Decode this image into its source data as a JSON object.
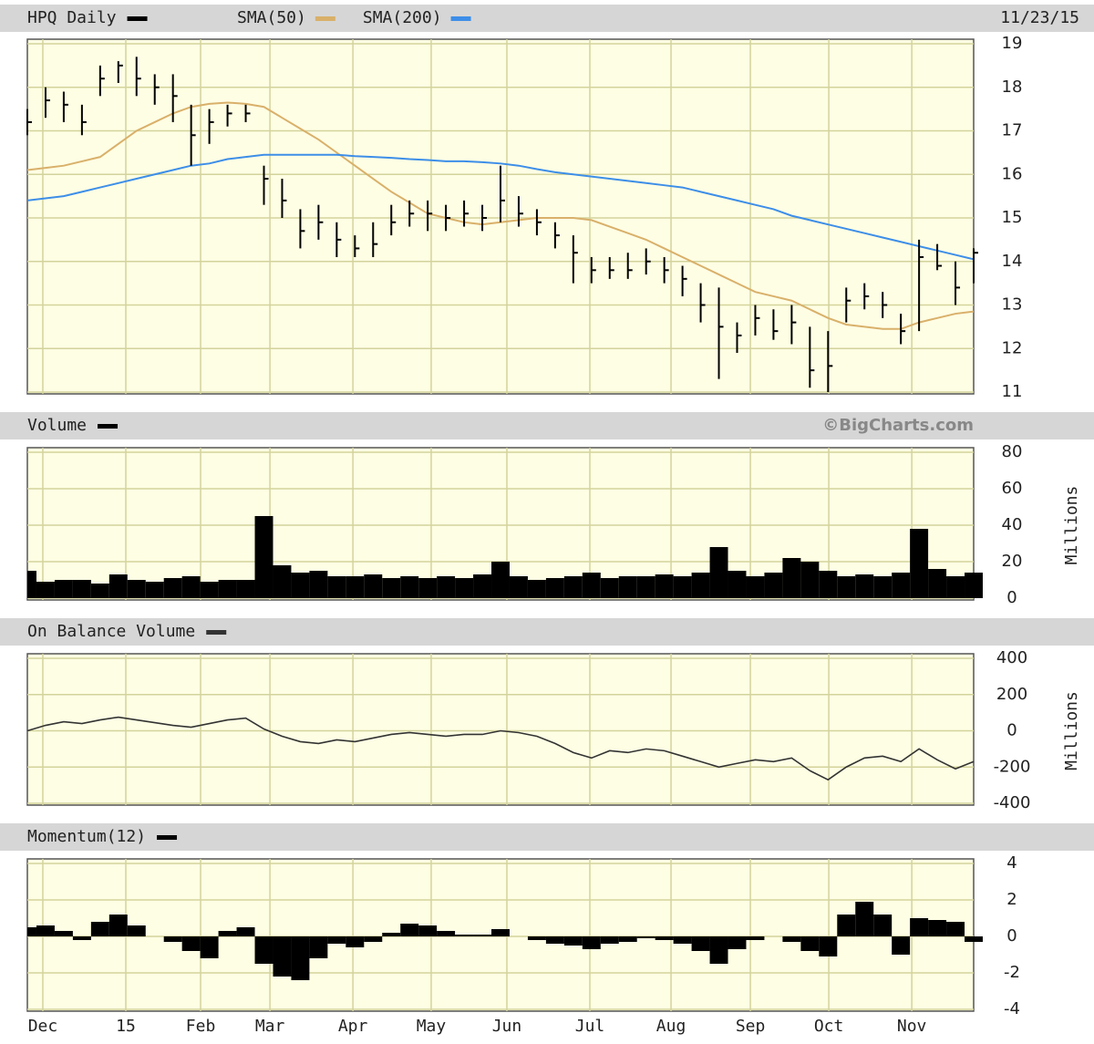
{
  "chart_data": [
    {
      "type": "ohlc",
      "title": "HPQ Daily",
      "date": "11/23/15",
      "color": "#000000",
      "high": [
        17.5,
        18.0,
        17.9,
        17.6,
        18.5,
        18.6,
        18.7,
        18.3,
        18.3,
        17.6,
        17.5,
        17.6,
        17.6,
        16.2,
        15.9,
        15.2,
        15.3,
        14.9,
        14.6,
        14.9,
        15.3,
        15.4,
        15.4,
        15.3,
        15.4,
        15.3,
        16.2,
        15.5,
        15.2,
        14.9,
        14.6,
        14.1,
        14.1,
        14.2,
        14.3,
        14.1,
        13.9,
        13.5,
        13.4,
        12.6,
        13.0,
        12.9,
        13.0,
        12.5,
        12.4,
        13.4,
        13.5,
        13.3,
        12.8,
        14.5,
        14.4,
        14.0,
        14.3
      ],
      "low": [
        16.9,
        17.3,
        17.2,
        16.9,
        17.8,
        18.1,
        17.8,
        17.6,
        17.2,
        16.2,
        16.7,
        17.1,
        17.2,
        15.3,
        15.0,
        14.3,
        14.5,
        14.1,
        14.1,
        14.1,
        14.6,
        14.8,
        14.7,
        14.7,
        14.8,
        14.7,
        14.9,
        14.8,
        14.6,
        14.3,
        13.5,
        13.5,
        13.6,
        13.6,
        13.7,
        13.5,
        13.2,
        12.6,
        11.3,
        11.9,
        12.3,
        12.2,
        12.1,
        11.1,
        11.0,
        12.6,
        12.9,
        12.7,
        12.1,
        12.4,
        13.8,
        13.0,
        13.5
      ],
      "close": [
        17.2,
        17.7,
        17.6,
        17.2,
        18.2,
        18.5,
        18.2,
        18.0,
        17.8,
        16.9,
        17.2,
        17.4,
        17.4,
        15.9,
        15.4,
        14.7,
        14.9,
        14.5,
        14.3,
        14.4,
        14.9,
        15.1,
        15.1,
        15.0,
        15.1,
        15.0,
        15.4,
        15.1,
        14.9,
        14.6,
        14.2,
        13.8,
        13.8,
        13.8,
        14.0,
        13.8,
        13.6,
        13.0,
        12.5,
        12.3,
        12.7,
        12.4,
        12.6,
        11.5,
        11.6,
        13.1,
        13.2,
        13.0,
        12.4,
        14.1,
        13.9,
        13.4,
        14.2
      ],
      "series": [
        {
          "name": "SMA(50)",
          "color": "#d9b06a",
          "values": [
            16.1,
            16.15,
            16.2,
            16.3,
            16.4,
            16.7,
            17.0,
            17.2,
            17.4,
            17.55,
            17.62,
            17.65,
            17.62,
            17.55,
            17.3,
            17.05,
            16.8,
            16.5,
            16.2,
            15.9,
            15.6,
            15.35,
            15.1,
            15.0,
            14.9,
            14.85,
            14.9,
            14.95,
            15.0,
            15.0,
            15.0,
            14.95,
            14.8,
            14.65,
            14.5,
            14.3,
            14.1,
            13.9,
            13.7,
            13.5,
            13.3,
            13.2,
            13.1,
            12.9,
            12.7,
            12.55,
            12.5,
            12.45,
            12.45,
            12.6,
            12.7,
            12.8,
            12.85
          ]
        },
        {
          "name": "SMA(200)",
          "color": "#3d8ee8",
          "values": [
            15.4,
            15.45,
            15.5,
            15.6,
            15.7,
            15.8,
            15.9,
            16.0,
            16.1,
            16.2,
            16.25,
            16.35,
            16.4,
            16.45,
            16.45,
            16.45,
            16.45,
            16.45,
            16.42,
            16.4,
            16.38,
            16.35,
            16.33,
            16.3,
            16.3,
            16.28,
            16.25,
            16.2,
            16.12,
            16.05,
            16.0,
            15.95,
            15.9,
            15.85,
            15.8,
            15.75,
            15.7,
            15.6,
            15.5,
            15.4,
            15.3,
            15.2,
            15.05,
            14.95,
            14.85,
            14.75,
            14.65,
            14.55,
            14.45,
            14.35,
            14.25,
            14.15,
            14.05
          ]
        }
      ],
      "ylim": [
        11,
        19
      ],
      "yticks": [
        11,
        12,
        13,
        14,
        15,
        16,
        17,
        18,
        19
      ],
      "grid": true
    },
    {
      "type": "bar",
      "title": "Volume",
      "source": "©BigCharts.com",
      "ylabel": "Millions",
      "color": "#000000",
      "values": [
        15,
        9,
        10,
        10,
        8,
        13,
        10,
        9,
        11,
        12,
        9,
        10,
        10,
        45,
        18,
        14,
        15,
        12,
        12,
        13,
        11,
        12,
        11,
        12,
        11,
        13,
        20,
        12,
        10,
        11,
        12,
        14,
        11,
        12,
        12,
        13,
        12,
        14,
        28,
        15,
        12,
        14,
        22,
        20,
        15,
        12,
        13,
        12,
        14,
        38,
        16,
        12,
        14
      ],
      "ylim": [
        0,
        80
      ],
      "yticks": [
        0,
        20,
        40,
        60,
        80
      ],
      "grid": true
    },
    {
      "type": "line",
      "title": "On Balance Volume",
      "ylabel": "Millions",
      "color": "#333333",
      "values": [
        0,
        30,
        50,
        40,
        60,
        75,
        60,
        45,
        30,
        20,
        40,
        60,
        70,
        10,
        -30,
        -60,
        -70,
        -50,
        -60,
        -40,
        -20,
        -10,
        -20,
        -30,
        -20,
        -20,
        0,
        -10,
        -30,
        -70,
        -120,
        -150,
        -110,
        -120,
        -100,
        -110,
        -140,
        -170,
        -200,
        -180,
        -160,
        -170,
        -150,
        -220,
        -270,
        -200,
        -150,
        -140,
        -170,
        -100,
        -160,
        -210,
        -170
      ],
      "ylim": [
        -400,
        400
      ],
      "yticks": [
        -400,
        -200,
        0,
        200,
        400
      ],
      "grid": true
    },
    {
      "type": "area",
      "title": "Momentum(12)",
      "color": "#000000",
      "values": [
        0.5,
        0.6,
        0.3,
        -0.2,
        0.8,
        1.2,
        0.6,
        0.0,
        -0.3,
        -0.8,
        -1.2,
        0.3,
        0.5,
        -1.5,
        -2.2,
        -2.4,
        -1.2,
        -0.4,
        -0.6,
        -0.3,
        0.2,
        0.7,
        0.6,
        0.3,
        0.1,
        0.1,
        0.4,
        0.0,
        -0.2,
        -0.4,
        -0.5,
        -0.7,
        -0.4,
        -0.3,
        -0.1,
        -0.2,
        -0.4,
        -0.8,
        -1.5,
        -0.7,
        -0.2,
        0.0,
        -0.3,
        -0.8,
        -1.1,
        1.2,
        1.9,
        1.2,
        -1.0,
        1.0,
        0.9,
        0.8,
        -0.3
      ],
      "ylim": [
        -4,
        4
      ],
      "yticks": [
        -4,
        -2,
        0,
        2,
        4
      ],
      "grid": true,
      "xlim": [
        0,
        52
      ],
      "xticks": [
        {
          "value": 0.85,
          "label": "Dec"
        },
        {
          "value": 5.41,
          "label": "15"
        },
        {
          "value": 9.52,
          "label": "Feb"
        },
        {
          "value": 13.33,
          "label": "Mar"
        },
        {
          "value": 17.89,
          "label": "Apr"
        },
        {
          "value": 22.19,
          "label": "May"
        },
        {
          "value": 26.35,
          "label": "Jun"
        },
        {
          "value": 30.91,
          "label": "Jul"
        },
        {
          "value": 35.37,
          "label": "Aug"
        },
        {
          "value": 39.73,
          "label": "Sep"
        },
        {
          "value": 44.04,
          "label": "Oct"
        },
        {
          "value": 48.6,
          "label": "Nov"
        }
      ]
    }
  ]
}
